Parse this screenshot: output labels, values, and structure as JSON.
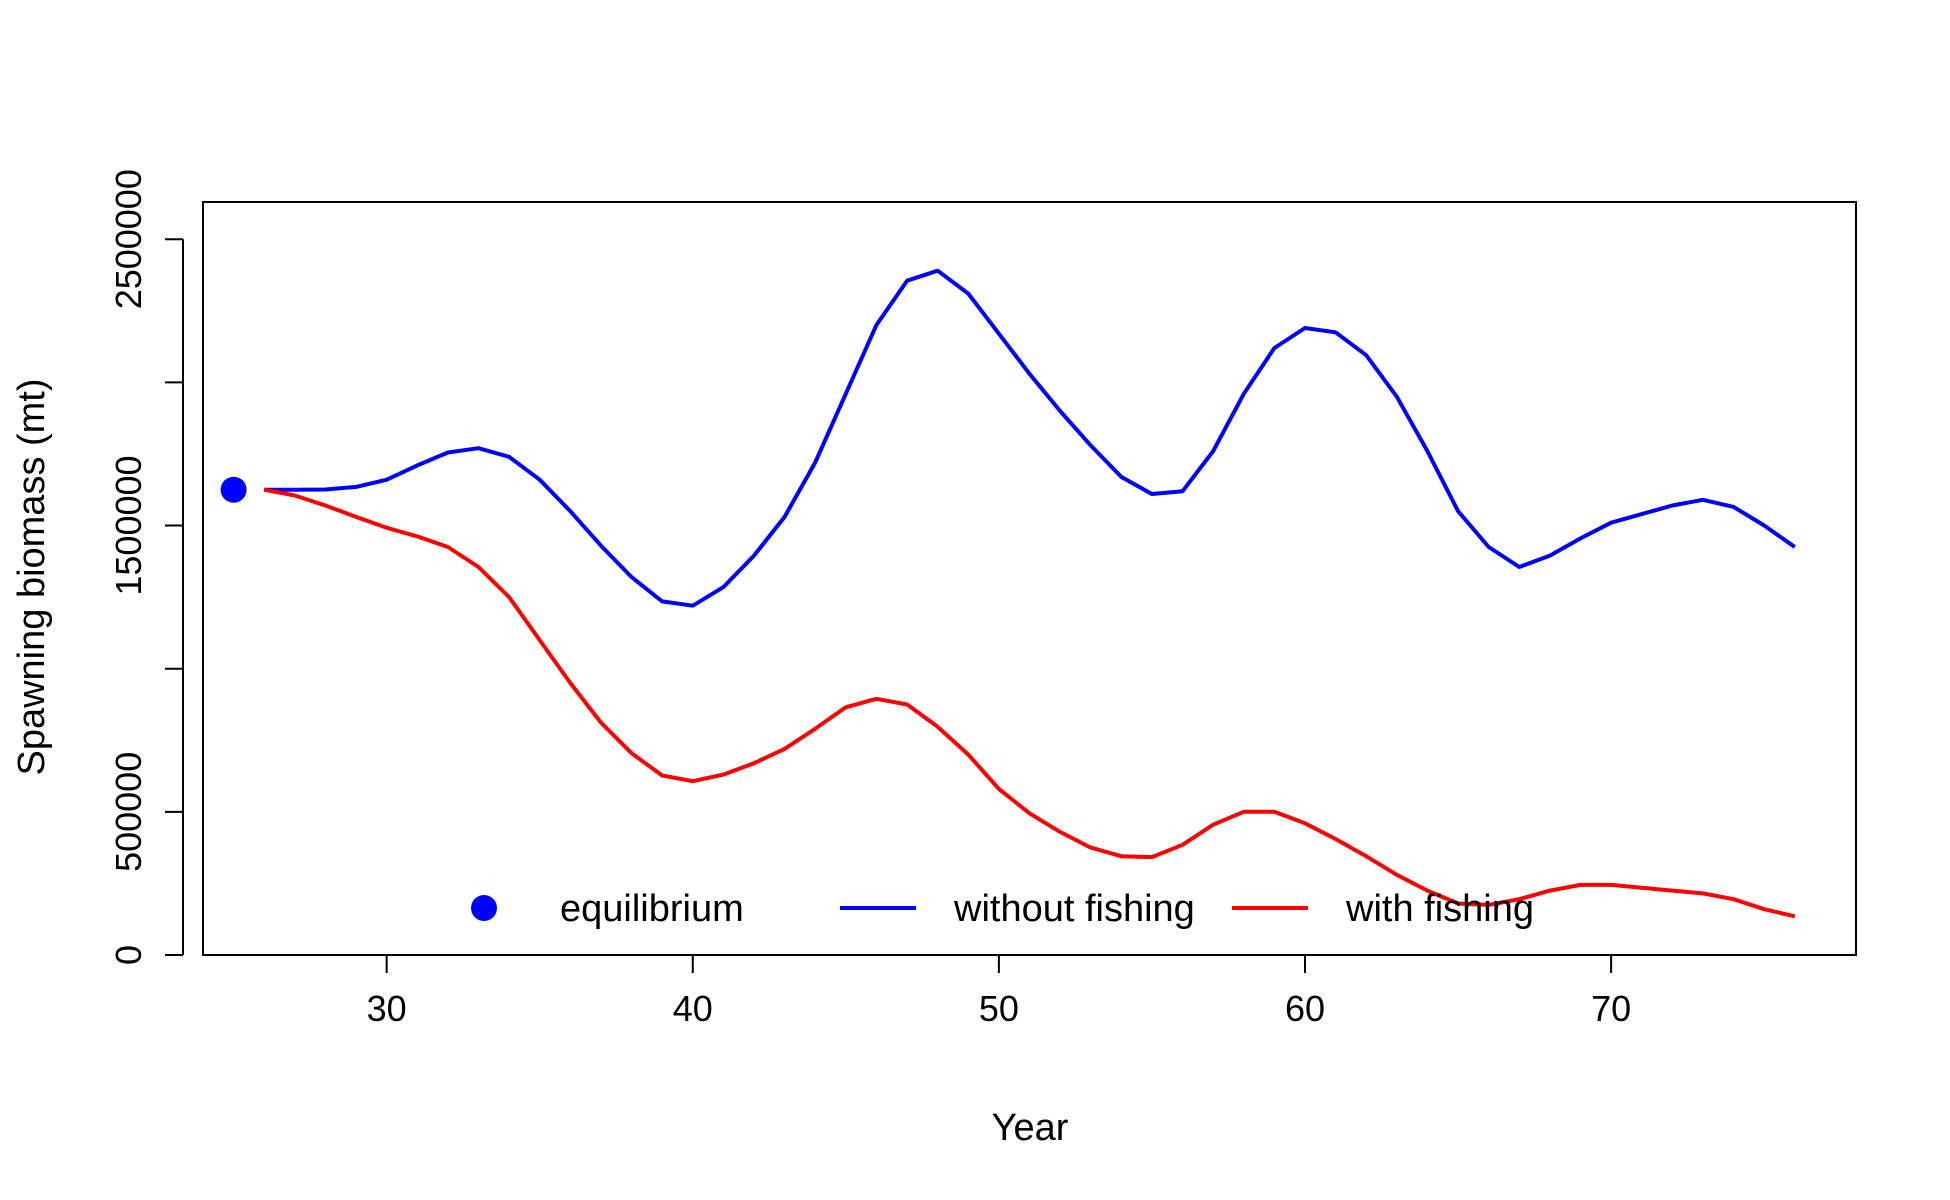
{
  "chart_data": {
    "type": "line",
    "title": "",
    "xlabel": "Year",
    "ylabel": "Spawning biomass (mt)",
    "xlim": [
      24,
      78
    ],
    "ylim": [
      0,
      2630000
    ],
    "x_ticks": [
      30,
      40,
      50,
      60,
      70
    ],
    "y_ticks": [
      0,
      500000,
      1000000,
      1500000,
      2000000,
      2500000
    ],
    "x_tick_labels": [
      "30",
      "40",
      "50",
      "60",
      "70"
    ],
    "y_tick_labels": [
      "0",
      "500000",
      "1500000",
      "2500000"
    ],
    "y_tick_label_values": [
      0,
      500000,
      1500000,
      2500000
    ],
    "grid": false,
    "legend": {
      "position": "bottom",
      "horizontal": true,
      "items": [
        {
          "label": "equilibrium",
          "type": "point",
          "color": "#0000FF"
        },
        {
          "label": "without fishing",
          "type": "line",
          "color": "#0000FF"
        },
        {
          "label": "with fishing",
          "type": "line",
          "color": "#FF0000"
        }
      ]
    },
    "points": [
      {
        "name": "equilibrium",
        "x": 25,
        "y": 1625000,
        "color": "#0000FF"
      }
    ],
    "series": [
      {
        "name": "without fishing",
        "color": "#0000FF",
        "x": [
          26,
          27,
          28,
          29,
          30,
          31,
          32,
          33,
          34,
          35,
          36,
          37,
          38,
          39,
          40,
          41,
          42,
          43,
          44,
          45,
          46,
          47,
          48,
          49,
          50,
          51,
          52,
          53,
          54,
          55,
          56,
          57,
          58,
          59,
          60,
          61,
          62,
          63,
          64,
          65,
          66,
          67,
          68,
          69,
          70,
          71,
          72,
          73,
          74,
          75,
          76
        ],
        "values": [
          1625000,
          1625000,
          1626000,
          1635000,
          1660000,
          1710000,
          1755000,
          1770000,
          1740000,
          1660000,
          1550000,
          1430000,
          1320000,
          1235000,
          1220000,
          1285000,
          1395000,
          1530000,
          1720000,
          1960000,
          2200000,
          2355000,
          2390000,
          2310000,
          2170000,
          2030000,
          1900000,
          1780000,
          1670000,
          1610000,
          1620000,
          1760000,
          1960000,
          2120000,
          2190000,
          2175000,
          2095000,
          1950000,
          1760000,
          1550000,
          1425000,
          1355000,
          1395000,
          1455000,
          1510000,
          1540000,
          1570000,
          1590000,
          1565000,
          1500000,
          1425000
        ]
      },
      {
        "name": "with fishing",
        "color": "#FF0000",
        "x": [
          26,
          27,
          28,
          29,
          30,
          31,
          32,
          33,
          34,
          35,
          36,
          37,
          38,
          39,
          40,
          41,
          42,
          43,
          44,
          45,
          46,
          47,
          48,
          49,
          50,
          51,
          52,
          53,
          54,
          55,
          56,
          57,
          58,
          59,
          60,
          61,
          62,
          63,
          64,
          65,
          66,
          67,
          68,
          69,
          70,
          71,
          72,
          73,
          74,
          75,
          76
        ],
        "values": [
          1625000,
          1605000,
          1570000,
          1530000,
          1492000,
          1462000,
          1425000,
          1355000,
          1250000,
          1100000,
          950000,
          812000,
          705000,
          627000,
          607000,
          630000,
          670000,
          720000,
          790000,
          865000,
          895000,
          875000,
          797000,
          700000,
          580000,
          495000,
          430000,
          375000,
          345000,
          342000,
          385000,
          455000,
          500000,
          500000,
          460000,
          405000,
          345000,
          280000,
          225000,
          180000,
          175000,
          195000,
          225000,
          245000,
          245000,
          235000,
          225000,
          215000,
          195000,
          160000,
          135000
        ]
      }
    ]
  }
}
